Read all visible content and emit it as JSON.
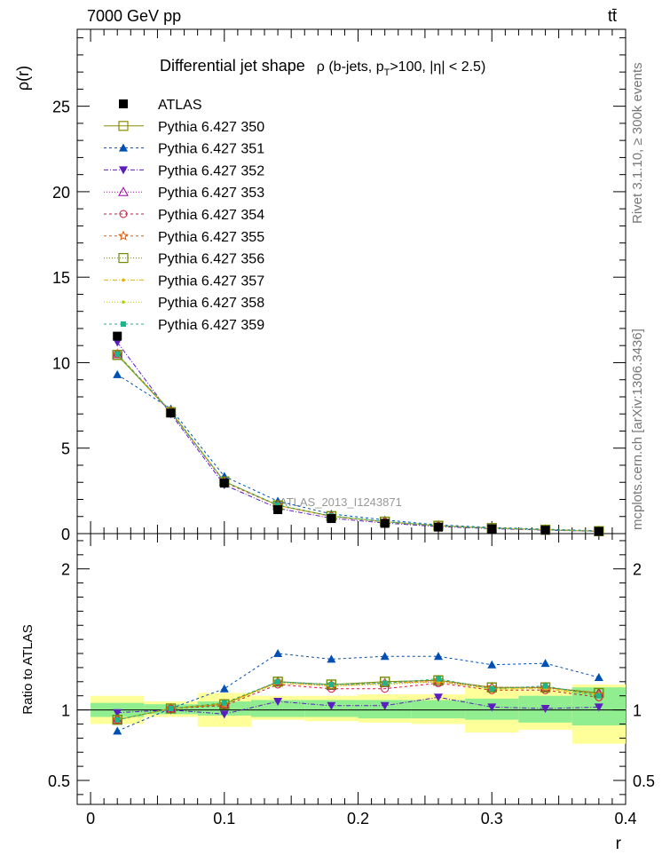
{
  "header": {
    "left": "7000 GeV pp",
    "right": "tt̄",
    "side_top": "Rivet 3.1.10, ≥ 300k events",
    "side_bottom": "mcplots.cern.ch [arXiv:1306.3436]",
    "watermark": "ATLAS_2013_I1243871"
  },
  "chart_data": [
    {
      "type": "line",
      "panel": "main",
      "title_main": "Differential jet shape",
      "title_sub": "ρ (b-jets, p",
      "title_sub_sub": "T",
      "title_sub_rest": ">100, |η| < 2.5)",
      "ylabel": "ρ(r)",
      "xlim": [
        -0.01,
        0.4
      ],
      "ylim": [
        0,
        29.5
      ],
      "yticks": [
        0,
        5,
        10,
        15,
        20,
        25
      ],
      "ytick_labels": [
        "0",
        "5",
        "10",
        "15",
        "20",
        "25"
      ],
      "legend_position": "top-left",
      "x": [
        0.02,
        0.06,
        0.1,
        0.14,
        0.18,
        0.22,
        0.26,
        0.3,
        0.34,
        0.38
      ],
      "data": {
        "name": "ATLAS",
        "values": [
          11.55,
          7.05,
          2.95,
          1.4,
          0.88,
          0.6,
          0.38,
          0.28,
          0.2,
          0.13
        ],
        "color": "#000000",
        "marker": "square-filled"
      },
      "series": [
        {
          "name": "Pythia 6.427 350",
          "values": [
            10.45,
            7.1,
            3.05,
            1.65,
            1.02,
            0.7,
            0.46,
            0.32,
            0.23,
            0.14
          ],
          "color": "#8b8b00",
          "marker": "square-open",
          "dash": "solid"
        },
        {
          "name": "Pythia 6.427 351",
          "values": [
            9.3,
            7.3,
            3.35,
            1.9,
            1.15,
            0.8,
            0.51,
            0.36,
            0.26,
            0.16
          ],
          "color": "#0050b4",
          "marker": "triangle-up-filled",
          "dash": "3,3"
        },
        {
          "name": "Pythia 6.427 352",
          "values": [
            11.2,
            7.0,
            2.85,
            1.48,
            0.9,
            0.62,
            0.41,
            0.29,
            0.2,
            0.13
          ],
          "color": "#5a1ebe",
          "marker": "triangle-down-filled",
          "dash": "5,2,1,2"
        },
        {
          "name": "Pythia 6.427 353",
          "values": [
            10.5,
            7.15,
            3.05,
            1.65,
            1.02,
            0.7,
            0.46,
            0.32,
            0.23,
            0.14
          ],
          "color": "#a000a0",
          "marker": "triangle-up-open",
          "dash": "1,2"
        },
        {
          "name": "Pythia 6.427 354",
          "values": [
            10.5,
            7.15,
            3.0,
            1.64,
            1.0,
            0.68,
            0.45,
            0.32,
            0.23,
            0.14
          ],
          "color": "#d2143c",
          "marker": "circle-open",
          "dash": "3,3"
        },
        {
          "name": "Pythia 6.427 355",
          "values": [
            10.5,
            7.15,
            3.05,
            1.66,
            1.02,
            0.7,
            0.46,
            0.32,
            0.23,
            0.14
          ],
          "color": "#e65a00",
          "marker": "star-open",
          "dash": "3,3"
        },
        {
          "name": "Pythia 6.427 356",
          "values": [
            10.45,
            7.1,
            3.05,
            1.65,
            1.02,
            0.7,
            0.46,
            0.32,
            0.23,
            0.14
          ],
          "color": "#6e8c00",
          "marker": "square-open",
          "dash": "1,2"
        },
        {
          "name": "Pythia 6.427 357",
          "values": [
            10.5,
            7.15,
            3.05,
            1.65,
            1.02,
            0.7,
            0.46,
            0.32,
            0.23,
            0.14
          ],
          "color": "#e6b400",
          "marker": "dot",
          "dash": "5,2,1,2"
        },
        {
          "name": "Pythia 6.427 358",
          "values": [
            10.5,
            7.15,
            3.05,
            1.65,
            1.02,
            0.7,
            0.46,
            0.32,
            0.23,
            0.14
          ],
          "color": "#b4d200",
          "marker": "dot",
          "dash": "1,2"
        },
        {
          "name": "Pythia 6.427 359",
          "values": [
            10.5,
            7.15,
            3.05,
            1.67,
            1.03,
            0.7,
            0.46,
            0.32,
            0.23,
            0.14
          ],
          "color": "#1eb48c",
          "marker": "square-small-filled",
          "dash": "3,3"
        }
      ]
    },
    {
      "type": "line",
      "panel": "ratio",
      "ylabel": "Ratio to ATLAS",
      "xlabel": "r",
      "xlim": [
        -0.01,
        0.4
      ],
      "ylim": [
        0.33,
        2.25
      ],
      "yticks": [
        0.5,
        1,
        2
      ],
      "ytick_labels": [
        "0.5",
        "1",
        "2"
      ],
      "xticks": [
        0,
        0.1,
        0.2,
        0.3,
        0.4
      ],
      "xtick_labels": [
        "0",
        "0.1",
        "0.2",
        "0.3",
        "0.4"
      ],
      "bins": [
        [
          0.0,
          0.04
        ],
        [
          0.04,
          0.08
        ],
        [
          0.08,
          0.12
        ],
        [
          0.12,
          0.16
        ],
        [
          0.16,
          0.2
        ],
        [
          0.2,
          0.24
        ],
        [
          0.24,
          0.28
        ],
        [
          0.28,
          0.32
        ],
        [
          0.32,
          0.36
        ],
        [
          0.36,
          0.4
        ]
      ],
      "band_stat": {
        "color": "#90ee90",
        "lo": [
          0.95,
          0.97,
          0.96,
          0.95,
          0.95,
          0.94,
          0.94,
          0.93,
          0.91,
          0.89
        ],
        "hi": [
          1.05,
          1.04,
          1.06,
          1.07,
          1.07,
          1.07,
          1.07,
          1.08,
          1.1,
          1.16
        ]
      },
      "band_total": {
        "color": "#ffff99",
        "lo": [
          0.9,
          0.95,
          0.88,
          0.93,
          0.92,
          0.91,
          0.9,
          0.84,
          0.86,
          0.76
        ],
        "hi": [
          1.1,
          1.06,
          1.12,
          1.1,
          1.1,
          1.11,
          1.11,
          1.16,
          1.14,
          1.18
        ]
      },
      "series": [
        {
          "name": "Pythia 6.427 350",
          "values": [
            0.93,
            1.01,
            1.04,
            1.2,
            1.18,
            1.2,
            1.21,
            1.16,
            1.16,
            1.12
          ]
        },
        {
          "name": "Pythia 6.427 351",
          "values": [
            0.85,
            1.01,
            1.15,
            1.4,
            1.36,
            1.38,
            1.38,
            1.32,
            1.33,
            1.23
          ]
        },
        {
          "name": "Pythia 6.427 352",
          "values": [
            0.98,
            1.0,
            0.97,
            1.06,
            1.03,
            1.03,
            1.09,
            1.02,
            1.01,
            1.02
          ]
        },
        {
          "name": "Pythia 6.427 353",
          "values": [
            0.93,
            1.01,
            1.04,
            1.2,
            1.17,
            1.19,
            1.2,
            1.16,
            1.16,
            1.12
          ]
        },
        {
          "name": "Pythia 6.427 354",
          "values": [
            0.93,
            1.01,
            1.03,
            1.18,
            1.15,
            1.15,
            1.19,
            1.14,
            1.14,
            1.09
          ]
        },
        {
          "name": "Pythia 6.427 355",
          "values": [
            0.93,
            1.01,
            1.04,
            1.2,
            1.18,
            1.19,
            1.21,
            1.16,
            1.16,
            1.11
          ]
        },
        {
          "name": "Pythia 6.427 356",
          "values": [
            0.93,
            1.01,
            1.04,
            1.2,
            1.18,
            1.2,
            1.21,
            1.16,
            1.16,
            1.12
          ]
        },
        {
          "name": "Pythia 6.427 357",
          "values": [
            0.93,
            1.01,
            1.05,
            1.19,
            1.17,
            1.19,
            1.2,
            1.15,
            1.15,
            1.11
          ]
        },
        {
          "name": "Pythia 6.427 358",
          "values": [
            0.93,
            1.01,
            1.04,
            1.19,
            1.17,
            1.18,
            1.2,
            1.15,
            1.15,
            1.1
          ]
        },
        {
          "name": "Pythia 6.427 359",
          "values": [
            0.93,
            1.01,
            1.05,
            1.2,
            1.18,
            1.19,
            1.22,
            1.15,
            1.17,
            1.1
          ]
        }
      ]
    }
  ]
}
